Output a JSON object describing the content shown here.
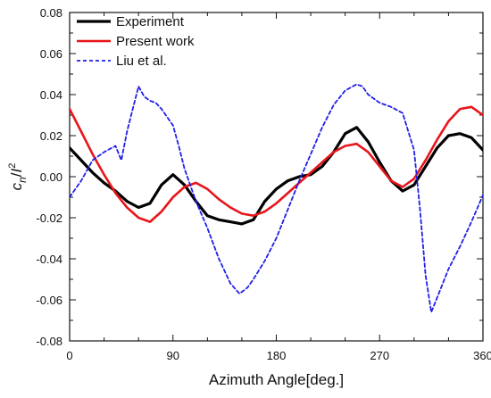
{
  "chart_data": {
    "type": "line",
    "xlabel": "Azimuth Angle[deg.]",
    "ylabel": {
      "base": "c",
      "subscript": "n",
      "middle": "/",
      "variable": "Ι",
      "superscript": "2"
    },
    "xlim": [
      0,
      360
    ],
    "ylim": [
      -0.08,
      0.08
    ],
    "xticks": [
      0,
      90,
      180,
      270,
      360
    ],
    "yticks": [
      -0.08,
      -0.06,
      -0.04,
      -0.02,
      0.0,
      0.02,
      0.04,
      0.06,
      0.08
    ],
    "ytick_labels": [
      "-0.08",
      "-0.06",
      "-0.04",
      "-0.02",
      "0.00",
      "0.02",
      "0.04",
      "0.06",
      "0.08"
    ],
    "legend_position": "top-left",
    "grid": false,
    "series": [
      {
        "name": "Experiment",
        "color": "#000000",
        "style": "solid",
        "x": [
          0,
          10,
          20,
          30,
          40,
          50,
          60,
          70,
          80,
          90,
          100,
          110,
          120,
          130,
          140,
          150,
          160,
          170,
          180,
          190,
          200,
          210,
          220,
          230,
          240,
          250,
          260,
          270,
          280,
          290,
          300,
          310,
          320,
          330,
          340,
          350,
          360
        ],
        "y": [
          0.014,
          0.008,
          0.002,
          -0.003,
          -0.007,
          -0.012,
          -0.015,
          -0.013,
          -0.004,
          0.001,
          -0.004,
          -0.012,
          -0.019,
          -0.021,
          -0.022,
          -0.023,
          -0.021,
          -0.012,
          -0.006,
          -0.002,
          0.0,
          0.001,
          0.005,
          0.012,
          0.021,
          0.024,
          0.017,
          0.007,
          -0.002,
          -0.007,
          -0.004,
          0.005,
          0.014,
          0.02,
          0.021,
          0.019,
          0.013
        ]
      },
      {
        "name": "Present work",
        "color": "#e8151a",
        "style": "solid",
        "x": [
          0,
          10,
          20,
          30,
          40,
          50,
          60,
          70,
          80,
          90,
          100,
          110,
          120,
          130,
          140,
          150,
          160,
          170,
          180,
          190,
          200,
          210,
          220,
          230,
          240,
          250,
          260,
          270,
          280,
          290,
          300,
          310,
          320,
          330,
          340,
          350,
          360
        ],
        "y": [
          0.033,
          0.022,
          0.011,
          0.001,
          -0.008,
          -0.015,
          -0.02,
          -0.022,
          -0.017,
          -0.01,
          -0.005,
          -0.003,
          -0.006,
          -0.011,
          -0.015,
          -0.018,
          -0.019,
          -0.017,
          -0.013,
          -0.008,
          -0.003,
          0.002,
          0.007,
          0.012,
          0.015,
          0.016,
          0.012,
          0.005,
          -0.002,
          -0.005,
          -0.001,
          0.008,
          0.018,
          0.027,
          0.033,
          0.034,
          0.03
        ]
      },
      {
        "name": "Liu et al.",
        "color": "#1f1fe8",
        "style": "dashed",
        "x": [
          0,
          10,
          20,
          30,
          40,
          45,
          50,
          55,
          60,
          65,
          70,
          75,
          80,
          85,
          90,
          95,
          100,
          110,
          120,
          130,
          140,
          148,
          155,
          160,
          170,
          180,
          190,
          200,
          210,
          220,
          230,
          240,
          250,
          255,
          260,
          270,
          280,
          290,
          300,
          305,
          310,
          315,
          320,
          330,
          340,
          350,
          360
        ],
        "y": [
          -0.01,
          -0.002,
          0.008,
          0.012,
          0.015,
          0.008,
          0.022,
          0.033,
          0.044,
          0.039,
          0.037,
          0.036,
          0.033,
          0.029,
          0.025,
          0.015,
          0.004,
          -0.012,
          -0.025,
          -0.04,
          -0.052,
          -0.057,
          -0.054,
          -0.05,
          -0.041,
          -0.03,
          -0.016,
          -0.002,
          0.011,
          0.024,
          0.035,
          0.042,
          0.045,
          0.044,
          0.04,
          0.036,
          0.034,
          0.031,
          0.013,
          -0.015,
          -0.048,
          -0.066,
          -0.059,
          -0.045,
          -0.034,
          -0.022,
          -0.009
        ]
      }
    ]
  }
}
